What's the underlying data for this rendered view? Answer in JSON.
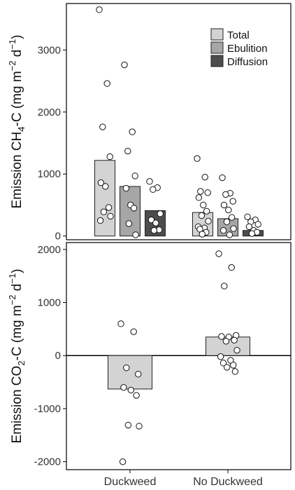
{
  "chart_data": [
    {
      "type": "bar",
      "ylabel": {
        "main": "Emission CH",
        "sub": "4",
        "mid": "-C (mg m",
        "sup1": "−2",
        "mid2": " d",
        "sup2": "−1",
        "end": ")"
      },
      "ylim": [
        -60,
        3750
      ],
      "yticks": [
        0,
        1000,
        2000,
        3000
      ],
      "yticklabels": [
        "0",
        "1000",
        "2000",
        "3000"
      ],
      "categories": [
        "Duckweed",
        "No Duckweed"
      ],
      "legend": {
        "placement": "top-right",
        "entries": [
          "Total",
          "Ebulition",
          "Diffusion"
        ]
      },
      "colors": {
        "Total": "#d3d3d3",
        "Ebulition": "#a6a6a6",
        "Diffusion": "#4d4d4d"
      },
      "series": [
        {
          "name": "Total",
          "values": [
            1220,
            380
          ],
          "points": [
            [
              3650,
              2460,
              1760,
              1280,
              860,
              800,
              460,
              390,
              320,
              250
            ],
            [
              1250,
              950,
              720,
              700,
              620,
              500,
              400,
              330,
              240,
              150,
              130,
              110,
              60,
              30
            ]
          ]
        },
        {
          "name": "Ebulition",
          "values": [
            800,
            280
          ],
          "points": [
            [
              2760,
              1680,
              1370,
              970,
              770,
              500,
              450,
              200,
              20
            ],
            [
              940,
              690,
              670,
              560,
              500,
              420,
              300,
              230,
              120,
              90,
              20
            ]
          ]
        },
        {
          "name": "Diffusion",
          "values": [
            410,
            90
          ],
          "points": [
            [
              880,
              780,
              750,
              360,
              260,
              210,
              100,
              90
            ],
            [
              310,
              260,
              230,
              190,
              150,
              90,
              60,
              40
            ]
          ]
        }
      ]
    },
    {
      "type": "bar",
      "ylabel": {
        "main": "Emission CO",
        "sub": "2",
        "mid": "-C (mg m",
        "sup1": "−2",
        "mid2": " d",
        "sup2": "−1",
        "end": ")"
      },
      "ylim": [
        -2150,
        2130
      ],
      "yticks": [
        -2000,
        -1000,
        0,
        1000,
        2000
      ],
      "yticklabels": [
        "-2000",
        "-1000",
        "0",
        "1000",
        "2000"
      ],
      "categories": [
        "Duckweed",
        "No Duckweed"
      ],
      "xticklabels": [
        "Duckweed",
        "No Duckweed"
      ],
      "series": [
        {
          "name": "",
          "values": [
            -630,
            350
          ],
          "points": [
            [
              600,
              450,
              -230,
              -350,
              -600,
              -650,
              -750,
              -1310,
              -1330,
              -2000
            ],
            [
              1920,
              1660,
              1310,
              380,
              360,
              350,
              290,
              270,
              100,
              -20,
              -90,
              -140,
              -180,
              -220,
              -300
            ]
          ]
        }
      ]
    }
  ]
}
